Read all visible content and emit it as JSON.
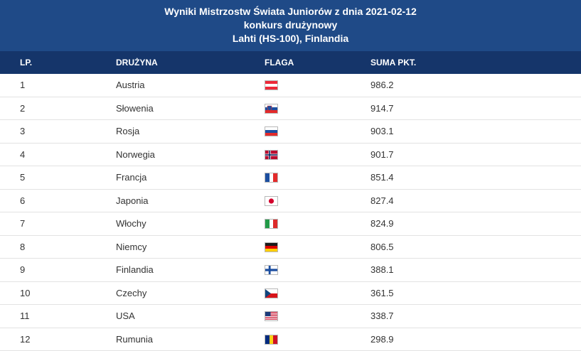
{
  "title": {
    "line1": "Wyniki Mistrzostw Świata Juniorów z dnia 2021-02-12",
    "line2": "konkurs drużynowy",
    "line3": "Lahti (HS-100), Finlandia"
  },
  "columns": {
    "lp": "LP.",
    "team": "DRUŻYNA",
    "flag": "FLAGA",
    "sum": "SUMA PKT."
  },
  "rows": [
    {
      "lp": "1",
      "team": "Austria",
      "flag_icon": "austria-flag-icon",
      "sum": "986.2"
    },
    {
      "lp": "2",
      "team": "Słowenia",
      "flag_icon": "slovenia-flag-icon",
      "sum": "914.7"
    },
    {
      "lp": "3",
      "team": "Rosja",
      "flag_icon": "russia-flag-icon",
      "sum": "903.1"
    },
    {
      "lp": "4",
      "team": "Norwegia",
      "flag_icon": "norway-flag-icon",
      "sum": "901.7"
    },
    {
      "lp": "5",
      "team": "Francja",
      "flag_icon": "france-flag-icon",
      "sum": "851.4"
    },
    {
      "lp": "6",
      "team": "Japonia",
      "flag_icon": "japan-flag-icon",
      "sum": "827.4"
    },
    {
      "lp": "7",
      "team": "Włochy",
      "flag_icon": "italy-flag-icon",
      "sum": "824.9"
    },
    {
      "lp": "8",
      "team": "Niemcy",
      "flag_icon": "germany-flag-icon",
      "sum": "806.5"
    },
    {
      "lp": "9",
      "team": "Finlandia",
      "flag_icon": "finland-flag-icon",
      "sum": "388.1"
    },
    {
      "lp": "10",
      "team": "Czechy",
      "flag_icon": "czechia-flag-icon",
      "sum": "361.5"
    },
    {
      "lp": "11",
      "team": "USA",
      "flag_icon": "usa-flag-icon",
      "sum": "338.7"
    },
    {
      "lp": "12",
      "team": "Rumunia",
      "flag_icon": "romania-flag-icon",
      "sum": "298.9"
    }
  ],
  "colors": {
    "banner": "#1f4a87",
    "header": "#15356a"
  }
}
